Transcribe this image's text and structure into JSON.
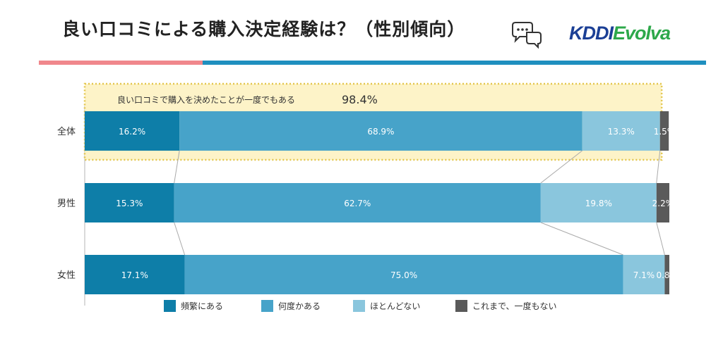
{
  "header": {
    "title": "良い口コミによる購入決定経験は？（性別傾向）",
    "logo_part1": "KDDI",
    "logo_part2": "Evolva"
  },
  "chart_data": {
    "type": "bar",
    "orientation": "horizontal",
    "stacked": true,
    "categories": [
      "全体",
      "男性",
      "女性"
    ],
    "series": [
      {
        "name": "頻繁にある",
        "color": "#0e7ea8",
        "values": [
          16.2,
          15.3,
          17.1
        ]
      },
      {
        "name": "何度かある",
        "color": "#47a3c9",
        "values": [
          68.9,
          62.7,
          75.0
        ]
      },
      {
        "name": "ほとんどない",
        "color": "#8ac6dd",
        "values": [
          13.3,
          19.8,
          7.1
        ]
      },
      {
        "name": "これまで、一度もない",
        "color": "#5a5a5a",
        "values": [
          1.5,
          2.2,
          0.8
        ]
      }
    ],
    "data_labels": [
      [
        "16.2%",
        "68.9%",
        "13.3%",
        "1.5%"
      ],
      [
        "15.3%",
        "62.7%",
        "19.8%",
        "2.2%"
      ],
      [
        "17.1%",
        "75.0%",
        "7.1%",
        "0.8%"
      ]
    ],
    "callout": {
      "text": "良い口コミで購入を決めたことが一度でもある",
      "value": "98.4%"
    },
    "xlim": [
      0,
      100
    ],
    "legend_position": "bottom"
  }
}
